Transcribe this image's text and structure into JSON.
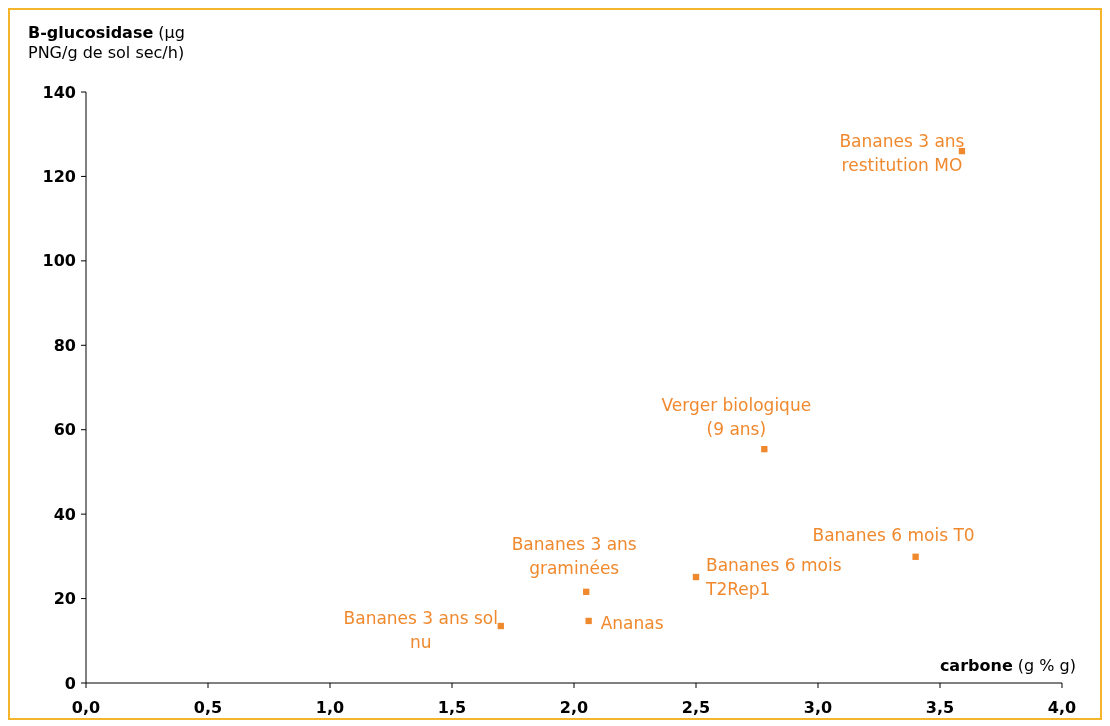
{
  "chart_data": {
    "type": "scatter",
    "ylabel": "B-glucosidase (µg PNG/g de sol sec/h)",
    "xlabel": "carbone (g % g)",
    "x": [
      3.59,
      2.78,
      3.4,
      2.5,
      2.05,
      2.06,
      1.7
    ],
    "series": [
      {
        "color": "#f0892e",
        "values": [
          126,
          55.4,
          29.9,
          25.1,
          21.6,
          14.7,
          13.5
        ]
      }
    ],
    "annotations": [
      {
        "text": "Bananes 3 ans restitution MO",
        "x": 3.59,
        "y": 126
      },
      {
        "text": "Verger biologique (9 ans)",
        "x": 2.78,
        "y": 55.4
      },
      {
        "text": "Bananes 6 mois T0",
        "x": 3.4,
        "y": 29.9
      },
      {
        "text": "Bananes 6 mois T2Rep1",
        "x": 2.5,
        "y": 25.1
      },
      {
        "text": "Bananes 3 ans graminées",
        "x": 2.05,
        "y": 21.6
      },
      {
        "text": "Ananas",
        "x": 2.06,
        "y": 14.7
      },
      {
        "text": "Bananes 3 ans sol nu",
        "x": 1.7,
        "y": 13.5
      }
    ],
    "xlim": [
      0,
      4
    ],
    "xticks": [
      {
        "value": 0,
        "label": "0,0"
      },
      {
        "value": 0.5,
        "label": "0,5"
      },
      {
        "value": 1,
        "label": "1,0"
      },
      {
        "value": 1.5,
        "label": "1,5"
      },
      {
        "value": 2,
        "label": "2,0"
      },
      {
        "value": 2.5,
        "label": "2,5"
      },
      {
        "value": 3,
        "label": "3,0"
      },
      {
        "value": 3.5,
        "label": "3,5"
      },
      {
        "value": 4,
        "label": "4,0"
      }
    ],
    "ylim": [
      0,
      140
    ],
    "yticks": [
      0,
      20,
      40,
      60,
      80,
      100,
      120,
      140
    ],
    "marker": "square",
    "grid": false
  }
}
